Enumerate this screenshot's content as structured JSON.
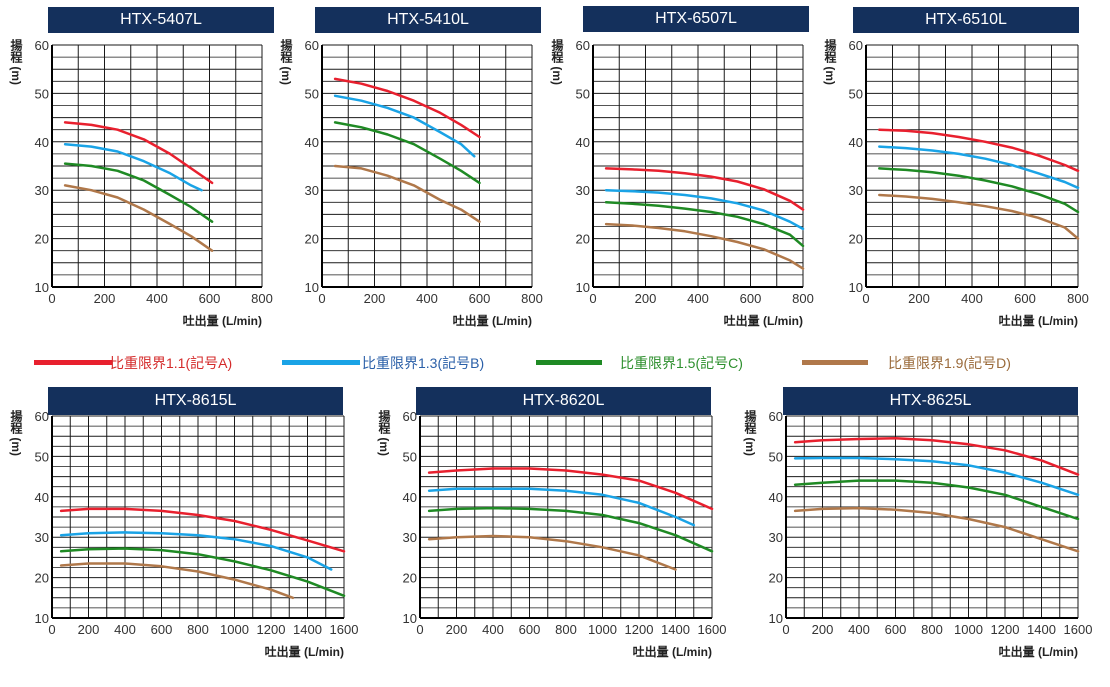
{
  "legend": [
    {
      "label": "比重限界1.1(記号A)",
      "color": "#e8202e"
    },
    {
      "label": "比重限界1.3(記号B)",
      "color": "#1aa3e6"
    },
    {
      "label": "比重限界1.5(記号C)",
      "color": "#1f8a24"
    },
    {
      "label": "比重限界1.9(記号D)",
      "color": "#b0784a"
    }
  ],
  "label_colors": [
    "#d42a2a",
    "#2a5fa8",
    "#2d8f2d",
    "#9a6a3a"
  ],
  "title_bg": "#14305c",
  "chart_data": [
    {
      "type": "line",
      "title": "HTX-5407L",
      "xlabel": "吐出量 (L/min)",
      "ylabel": "揚程 (m)",
      "xlim": [
        0,
        800
      ],
      "ylim": [
        10,
        60
      ],
      "xticks": [
        0,
        200,
        400,
        600,
        800
      ],
      "yticks": [
        10,
        20,
        30,
        40,
        50,
        60
      ],
      "grid": true,
      "series": [
        {
          "name": "比重限界1.1(記号A)",
          "x": [
            50,
            150,
            250,
            350,
            450,
            530,
            610
          ],
          "y": [
            44,
            43.5,
            42.5,
            40.5,
            37.5,
            34.5,
            31.5
          ]
        },
        {
          "name": "比重限界1.3(記号B)",
          "x": [
            50,
            150,
            250,
            350,
            450,
            530,
            570
          ],
          "y": [
            39.5,
            39,
            38,
            36,
            33.5,
            31,
            30
          ]
        },
        {
          "name": "比重限界1.5(記号C)",
          "x": [
            50,
            150,
            250,
            350,
            450,
            530,
            610
          ],
          "y": [
            35.5,
            35,
            34,
            32,
            29,
            26.5,
            23.5
          ]
        },
        {
          "name": "比重限界1.9(記号D)",
          "x": [
            50,
            150,
            250,
            350,
            450,
            530,
            610
          ],
          "y": [
            31,
            30,
            28.5,
            26,
            23,
            20.5,
            17.5
          ]
        }
      ]
    },
    {
      "type": "line",
      "title": "HTX-5410L",
      "xlabel": "吐出量 (L/min)",
      "ylabel": "揚程 (m)",
      "xlim": [
        0,
        800
      ],
      "ylim": [
        10,
        60
      ],
      "xticks": [
        0,
        200,
        400,
        600,
        800
      ],
      "yticks": [
        10,
        20,
        30,
        40,
        50,
        60
      ],
      "grid": true,
      "series": [
        {
          "name": "比重限界1.1(記号A)",
          "x": [
            50,
            150,
            250,
            350,
            450,
            530,
            600
          ],
          "y": [
            53,
            52,
            50.5,
            48.5,
            46,
            43.5,
            41
          ]
        },
        {
          "name": "比重限界1.3(記号B)",
          "x": [
            50,
            150,
            250,
            350,
            450,
            530,
            580
          ],
          "y": [
            49.5,
            48.5,
            47,
            45,
            42,
            39.5,
            37
          ]
        },
        {
          "name": "比重限界1.5(記号C)",
          "x": [
            50,
            150,
            250,
            350,
            450,
            530,
            600
          ],
          "y": [
            44,
            43,
            41.5,
            39.5,
            36.5,
            34,
            31.5
          ]
        },
        {
          "name": "比重限界1.9(記号D)",
          "x": [
            50,
            150,
            250,
            350,
            450,
            530,
            600
          ],
          "y": [
            35,
            34.5,
            33,
            31,
            28,
            26,
            23.5
          ]
        }
      ]
    },
    {
      "type": "line",
      "title": "HTX-6507L",
      "xlabel": "吐出量 (L/min)",
      "ylabel": "揚程 (m)",
      "xlim": [
        0,
        800
      ],
      "ylim": [
        10,
        60
      ],
      "xticks": [
        0,
        200,
        400,
        600,
        800
      ],
      "yticks": [
        10,
        20,
        30,
        40,
        50,
        60
      ],
      "grid": true,
      "series": [
        {
          "name": "比重限界1.1(記号A)",
          "x": [
            50,
            150,
            250,
            350,
            450,
            550,
            650,
            750,
            800
          ],
          "y": [
            34.5,
            34.3,
            34,
            33.5,
            32.8,
            31.8,
            30.2,
            27.8,
            26
          ]
        },
        {
          "name": "比重限界1.3(記号B)",
          "x": [
            50,
            150,
            250,
            350,
            450,
            550,
            650,
            750,
            800
          ],
          "y": [
            30,
            29.8,
            29.5,
            29,
            28.3,
            27.3,
            25.8,
            23.5,
            22
          ]
        },
        {
          "name": "比重限界1.5(記号C)",
          "x": [
            50,
            150,
            250,
            350,
            450,
            550,
            650,
            750,
            800
          ],
          "y": [
            27.5,
            27.2,
            26.8,
            26.2,
            25.5,
            24.5,
            23,
            20.8,
            18.5
          ]
        },
        {
          "name": "比重限界1.9(記号D)",
          "x": [
            50,
            150,
            250,
            350,
            450,
            550,
            650,
            750,
            800
          ],
          "y": [
            23,
            22.7,
            22.2,
            21.5,
            20.5,
            19.3,
            17.8,
            15.5,
            13.8
          ]
        }
      ]
    },
    {
      "type": "line",
      "title": "HTX-6510L",
      "xlabel": "吐出量 (L/min)",
      "ylabel": "揚程 (m)",
      "xlim": [
        0,
        800
      ],
      "ylim": [
        10,
        60
      ],
      "xticks": [
        0,
        200,
        400,
        600,
        800
      ],
      "yticks": [
        10,
        20,
        30,
        40,
        50,
        60
      ],
      "grid": true,
      "series": [
        {
          "name": "比重限界1.1(記号A)",
          "x": [
            50,
            150,
            250,
            350,
            450,
            550,
            650,
            750,
            800
          ],
          "y": [
            42.5,
            42.3,
            41.8,
            41,
            40,
            38.8,
            37.2,
            35.2,
            34
          ]
        },
        {
          "name": "比重限界1.3(記号B)",
          "x": [
            50,
            150,
            250,
            350,
            450,
            550,
            650,
            750,
            800
          ],
          "y": [
            39,
            38.7,
            38.2,
            37.5,
            36.5,
            35.2,
            33.5,
            31.7,
            30.5
          ]
        },
        {
          "name": "比重限界1.5(記号C)",
          "x": [
            50,
            150,
            250,
            350,
            450,
            550,
            650,
            750,
            800
          ],
          "y": [
            34.5,
            34.2,
            33.7,
            33,
            32,
            30.8,
            29.2,
            27.2,
            25.5
          ]
        },
        {
          "name": "比重限界1.9(記号D)",
          "x": [
            50,
            150,
            250,
            350,
            450,
            550,
            650,
            750,
            800
          ],
          "y": [
            29,
            28.7,
            28.2,
            27.5,
            26.7,
            25.7,
            24.3,
            22.3,
            20
          ]
        }
      ]
    },
    {
      "type": "line",
      "title": "HTX-8615L",
      "xlabel": "吐出量 (L/min)",
      "ylabel": "揚程 (m)",
      "xlim": [
        0,
        1600
      ],
      "ylim": [
        10,
        60
      ],
      "xticks": [
        0,
        200,
        400,
        600,
        800,
        1000,
        1200,
        1400,
        1600
      ],
      "yticks": [
        10,
        20,
        30,
        40,
        50,
        60
      ],
      "grid": true,
      "series": [
        {
          "name": "比重限界1.1(記号A)",
          "x": [
            50,
            200,
            400,
            600,
            800,
            1000,
            1200,
            1400,
            1600
          ],
          "y": [
            36.5,
            37,
            37,
            36.5,
            35.5,
            34,
            31.8,
            29.2,
            26.5
          ]
        },
        {
          "name": "比重限界1.3(記号B)",
          "x": [
            50,
            200,
            400,
            600,
            800,
            1000,
            1200,
            1400,
            1530
          ],
          "y": [
            30.5,
            31,
            31.2,
            31,
            30.5,
            29.5,
            27.8,
            25,
            22
          ]
        },
        {
          "name": "比重限界1.5(記号C)",
          "x": [
            50,
            200,
            400,
            600,
            800,
            1000,
            1200,
            1400,
            1600
          ],
          "y": [
            26.5,
            27,
            27.2,
            26.8,
            25.8,
            24,
            21.8,
            19,
            15.5
          ]
        },
        {
          "name": "比重限界1.9(記号D)",
          "x": [
            50,
            200,
            400,
            600,
            800,
            1000,
            1200,
            1320
          ],
          "y": [
            23,
            23.5,
            23.5,
            22.8,
            21.5,
            19.5,
            17,
            15
          ]
        }
      ]
    },
    {
      "type": "line",
      "title": "HTX-8620L",
      "xlabel": "吐出量 (L/min)",
      "ylabel": "揚程 (m)",
      "xlim": [
        0,
        1600
      ],
      "ylim": [
        10,
        60
      ],
      "xticks": [
        0,
        200,
        400,
        600,
        800,
        1000,
        1200,
        1400,
        1600
      ],
      "yticks": [
        10,
        20,
        30,
        40,
        50,
        60
      ],
      "grid": true,
      "series": [
        {
          "name": "比重限界1.1(記号A)",
          "x": [
            50,
            200,
            400,
            600,
            800,
            1000,
            1200,
            1400,
            1600
          ],
          "y": [
            46,
            46.5,
            47,
            47,
            46.5,
            45.5,
            44,
            41,
            37
          ]
        },
        {
          "name": "比重限界1.3(記号B)",
          "x": [
            50,
            200,
            400,
            600,
            800,
            1000,
            1200,
            1400,
            1500
          ],
          "y": [
            41.5,
            42,
            42,
            42,
            41.5,
            40.5,
            38.5,
            35,
            33
          ]
        },
        {
          "name": "比重限界1.5(記号C)",
          "x": [
            50,
            200,
            400,
            600,
            800,
            1000,
            1200,
            1400,
            1600
          ],
          "y": [
            36.5,
            37,
            37.2,
            37,
            36.5,
            35.5,
            33.5,
            30.5,
            26.5
          ]
        },
        {
          "name": "比重限界1.9(記号D)",
          "x": [
            50,
            200,
            400,
            600,
            800,
            1000,
            1200,
            1400
          ],
          "y": [
            29.5,
            30,
            30.3,
            30,
            29,
            27.5,
            25.5,
            22
          ]
        }
      ]
    },
    {
      "type": "line",
      "title": "HTX-8625L",
      "xlabel": "吐出量 (L/min)",
      "ylabel": "揚程 (m)",
      "xlim": [
        0,
        1600
      ],
      "ylim": [
        10,
        60
      ],
      "xticks": [
        0,
        200,
        400,
        600,
        800,
        1000,
        1200,
        1400,
        1600
      ],
      "yticks": [
        10,
        20,
        30,
        40,
        50,
        60
      ],
      "grid": true,
      "series": [
        {
          "name": "比重限界1.1(記号A)",
          "x": [
            50,
            200,
            400,
            600,
            800,
            1000,
            1200,
            1400,
            1600
          ],
          "y": [
            53.5,
            54,
            54.3,
            54.5,
            54,
            53,
            51.5,
            49,
            45.5
          ]
        },
        {
          "name": "比重限界1.3(記号B)",
          "x": [
            50,
            200,
            400,
            600,
            800,
            1000,
            1200,
            1400,
            1600
          ],
          "y": [
            49.5,
            49.6,
            49.6,
            49.3,
            48.8,
            47.8,
            46,
            43.5,
            40.5
          ]
        },
        {
          "name": "比重限界1.5(記号C)",
          "x": [
            50,
            200,
            400,
            600,
            800,
            1000,
            1200,
            1400,
            1600
          ],
          "y": [
            43,
            43.5,
            44,
            44,
            43.5,
            42.3,
            40.5,
            37.5,
            34.5
          ]
        },
        {
          "name": "比重限界1.9(記号D)",
          "x": [
            50,
            200,
            400,
            600,
            800,
            1000,
            1200,
            1400,
            1600
          ],
          "y": [
            36.5,
            37,
            37.2,
            36.8,
            36,
            34.5,
            32.5,
            29.5,
            26.5
          ]
        }
      ]
    }
  ]
}
